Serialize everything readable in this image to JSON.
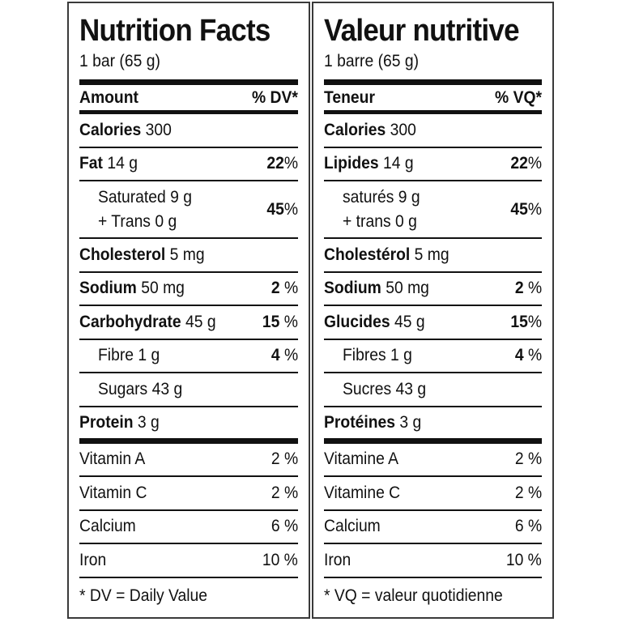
{
  "english": {
    "title": "Nutrition Facts",
    "serving": "1 bar (65 g)",
    "header": {
      "amount": "Amount",
      "dv": "% DV*"
    },
    "calories": {
      "label": "Calories",
      "value": "300"
    },
    "fat": {
      "label": "Fat",
      "amount": "14 g",
      "pct": "22",
      "unit": "%"
    },
    "saturated": {
      "line1": "Saturated 9 g",
      "line2": "+ Trans 0 g",
      "pct": "45",
      "unit": "%"
    },
    "cholesterol": {
      "label": "Cholesterol",
      "amount": "5 mg"
    },
    "sodium": {
      "label": "Sodium",
      "amount": "50 mg",
      "pct": "2",
      "unit": " %"
    },
    "carbohydrate": {
      "label": "Carbohydrate",
      "amount": "45 g",
      "pct": "15",
      "unit": " %"
    },
    "fibre": {
      "label": "Fibre 1 g",
      "pct": "4",
      "unit": " %"
    },
    "sugars": {
      "label": "Sugars 43 g"
    },
    "protein": {
      "label": "Protein",
      "amount": "3 g"
    },
    "vitamin_a": {
      "label": "Vitamin A",
      "value": "2 %"
    },
    "vitamin_c": {
      "label": "Vitamin C",
      "value": "2 %"
    },
    "calcium": {
      "label": "Calcium",
      "value": "6 %"
    },
    "iron": {
      "label": "Iron",
      "value": "10 %"
    },
    "footnote": "* DV = Daily Value"
  },
  "french": {
    "title": "Valeur nutritive",
    "serving": "1 barre (65 g)",
    "header": {
      "amount": "Teneur",
      "dv": "% VQ*"
    },
    "calories": {
      "label": "Calories",
      "value": "300"
    },
    "fat": {
      "label": "Lipides",
      "amount": "14 g",
      "pct": "22",
      "unit": "%"
    },
    "saturated": {
      "line1": "saturés 9 g",
      "line2": "+ trans 0 g",
      "pct": "45",
      "unit": "%"
    },
    "cholesterol": {
      "label": "Cholestérol",
      "amount": "5 mg"
    },
    "sodium": {
      "label": "Sodium",
      "amount": "50 mg",
      "pct": "2",
      "unit": " %"
    },
    "carbohydrate": {
      "label": "Glucides",
      "amount": "45 g",
      "pct": "15",
      "unit": "%"
    },
    "fibre": {
      "label": "Fibres 1 g",
      "pct": "4",
      "unit": " %"
    },
    "sugars": {
      "label": "Sucres 43 g"
    },
    "protein": {
      "label": "Protéines",
      "amount": "3 g"
    },
    "vitamin_a": {
      "label": "Vitamine A",
      "value": "2 %"
    },
    "vitamin_c": {
      "label": "Vitamine C",
      "value": "2 %"
    },
    "calcium": {
      "label": "Calcium",
      "value": "6 %"
    },
    "iron": {
      "label": "Iron",
      "value": "10 %"
    },
    "footnote": "* VQ = valeur quotidienne"
  }
}
